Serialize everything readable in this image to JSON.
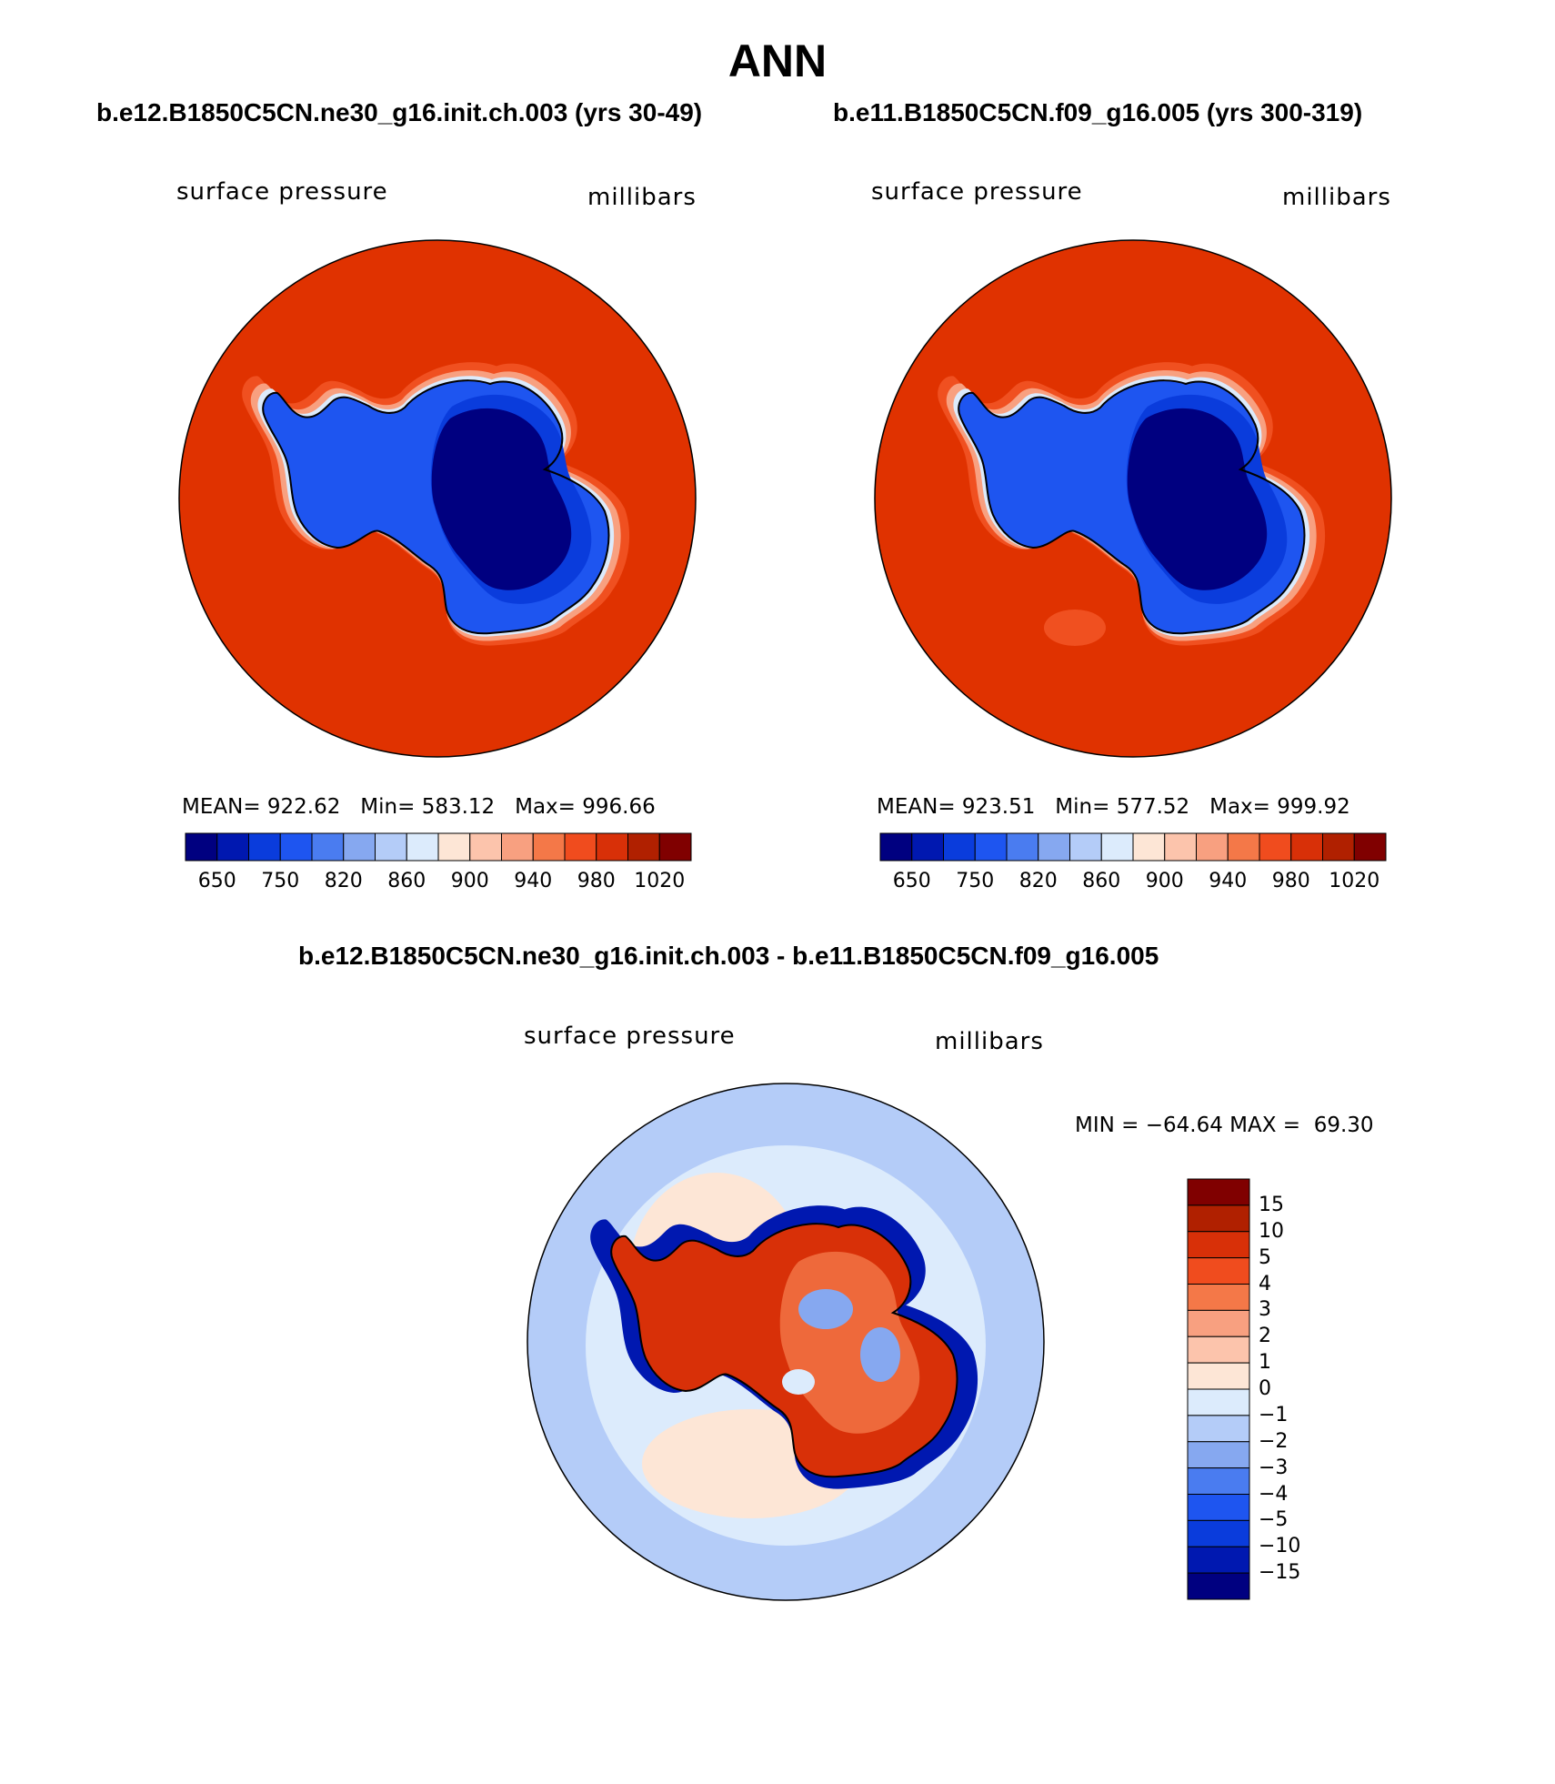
{
  "title": "ANN",
  "case_titles": {
    "left": "b.e12.B1850C5CN.ne30_g16.init.ch.003 (yrs 30-49)",
    "right": "b.e11.B1850C5CN.f09_g16.005 (yrs 300-319)",
    "diff": "b.e12.B1850C5CN.ne30_g16.init.ch.003 - b.e11.B1850C5CN.f09_g16.005"
  },
  "variable": "surface pressure",
  "units": "millibars",
  "left_stats": "MEAN= 922.62   Min= 583.12   Max= 996.66",
  "right_stats": "MEAN= 923.51   Min= 577.52   Max= 999.92",
  "diff_stats": "MIN = −64.64 MAX =  69.30",
  "colorbar_abs": {
    "labels": [
      "650",
      "750",
      "820",
      "860",
      "900",
      "940",
      "980",
      "1020"
    ],
    "colors": [
      "#000080",
      "#0018b0",
      "#0a3cdc",
      "#1e55f0",
      "#4a7cf0",
      "#86a8f0",
      "#b4ccf8",
      "#dcebfc",
      "#fde6d6",
      "#fcc4ac",
      "#f8a080",
      "#f47848",
      "#f04c1e",
      "#d83008",
      "#b02000",
      "#800000"
    ]
  },
  "colorbar_diff": {
    "labels": [
      "15",
      "10",
      "5",
      "4",
      "3",
      "2",
      "1",
      "0",
      "−1",
      "−2",
      "−3",
      "−4",
      "−5",
      "−10",
      "−15"
    ],
    "colors": [
      "#800000",
      "#b02000",
      "#d83008",
      "#f04c1e",
      "#f47848",
      "#f8a080",
      "#fcc4ac",
      "#fde6d6",
      "#dcebfc",
      "#b4ccf8",
      "#86a8f0",
      "#4a7cf0",
      "#1e55f0",
      "#0a3cdc",
      "#0018b0",
      "#000080"
    ]
  },
  "map_colors": {
    "ocean_abs": "#e03200",
    "coast_ring": "#f05020",
    "ring2": "#f8a080",
    "ring3": "#dcebfc",
    "ice_mid": "#1e55f0",
    "ice_high": "#0a3cdc",
    "ice_top": "#000080",
    "diff_outer": "#b4ccf8",
    "diff_mid": "#dcebfc",
    "diff_blob": "#fde6d6",
    "diff_red": "#d83008"
  }
}
